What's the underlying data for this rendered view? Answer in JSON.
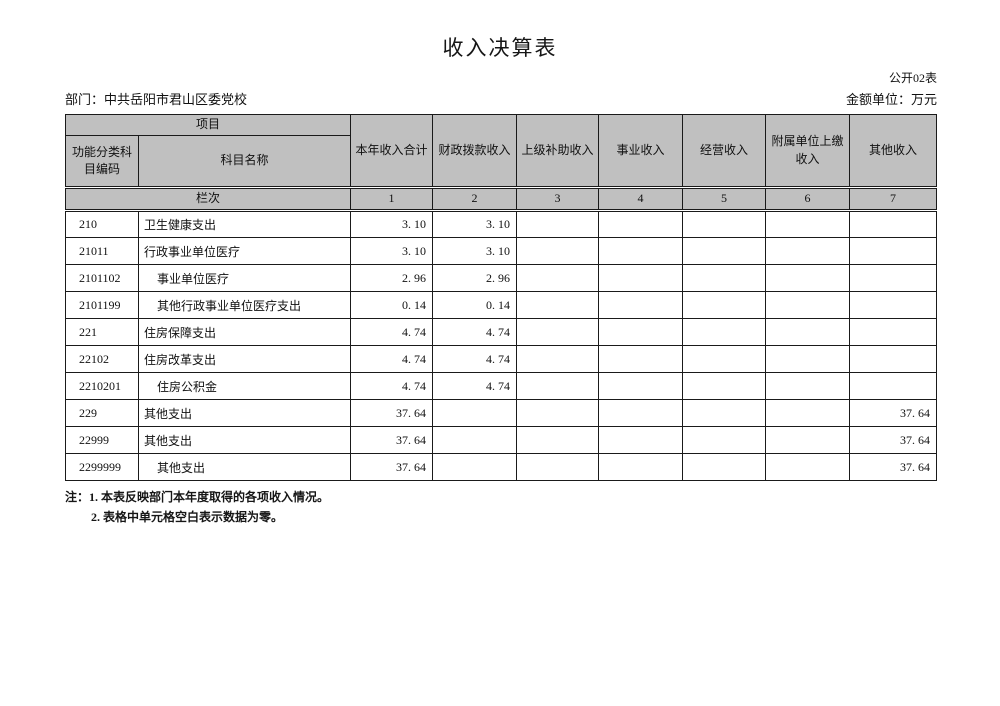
{
  "page": {
    "title": "收入决算表",
    "table_code": "公开02表",
    "department_line": "部门：中共岳阳市君山区委党校",
    "unit_line": "金额单位：万元"
  },
  "table": {
    "header": {
      "project": "项目",
      "code_label": "功能分类科目编码",
      "subject_label": "科目名称",
      "columns": [
        "本年收入合计",
        "财政拨款收入",
        "上级补助收入",
        "事业收入",
        "经营收入",
        "附属单位上缴收入",
        "其他收入"
      ],
      "row_band_label": "栏次",
      "column_numbers": [
        "1",
        "2",
        "3",
        "4",
        "5",
        "6",
        "7"
      ]
    },
    "rows": [
      {
        "code": "210",
        "name": "卫生健康支出",
        "indent": 0,
        "values": [
          "3. 10",
          "3. 10",
          "",
          "",
          "",
          "",
          ""
        ]
      },
      {
        "code": "21011",
        "name": "行政事业单位医疗",
        "indent": 0,
        "values": [
          "3. 10",
          "3. 10",
          "",
          "",
          "",
          "",
          ""
        ]
      },
      {
        "code": "2101102",
        "name": "事业单位医疗",
        "indent": 1,
        "values": [
          "2. 96",
          "2. 96",
          "",
          "",
          "",
          "",
          ""
        ]
      },
      {
        "code": "2101199",
        "name": "其他行政事业单位医疗支出",
        "indent": 1,
        "values": [
          "0. 14",
          "0. 14",
          "",
          "",
          "",
          "",
          ""
        ]
      },
      {
        "code": "221",
        "name": "住房保障支出",
        "indent": 0,
        "values": [
          "4. 74",
          "4. 74",
          "",
          "",
          "",
          "",
          ""
        ]
      },
      {
        "code": "22102",
        "name": "住房改革支出",
        "indent": 0,
        "values": [
          "4. 74",
          "4. 74",
          "",
          "",
          "",
          "",
          ""
        ]
      },
      {
        "code": "2210201",
        "name": "住房公积金",
        "indent": 1,
        "values": [
          "4. 74",
          "4. 74",
          "",
          "",
          "",
          "",
          ""
        ]
      },
      {
        "code": "229",
        "name": "其他支出",
        "indent": 0,
        "values": [
          "37. 64",
          "",
          "",
          "",
          "",
          "",
          "37. 64"
        ]
      },
      {
        "code": "22999",
        "name": "其他支出",
        "indent": 0,
        "values": [
          "37. 64",
          "",
          "",
          "",
          "",
          "",
          "37. 64"
        ]
      },
      {
        "code": "2299999",
        "name": "其他支出",
        "indent": 1,
        "values": [
          "37. 64",
          "",
          "",
          "",
          "",
          "",
          "37. 64"
        ]
      }
    ]
  },
  "notes": [
    "注：1. 本表反映部门本年度取得的各项收入情况。",
    "2. 表格中单元格空白表示数据为零。"
  ],
  "colors": {
    "header_fill": "#c0c0c0",
    "border": "#1a1a1a"
  }
}
